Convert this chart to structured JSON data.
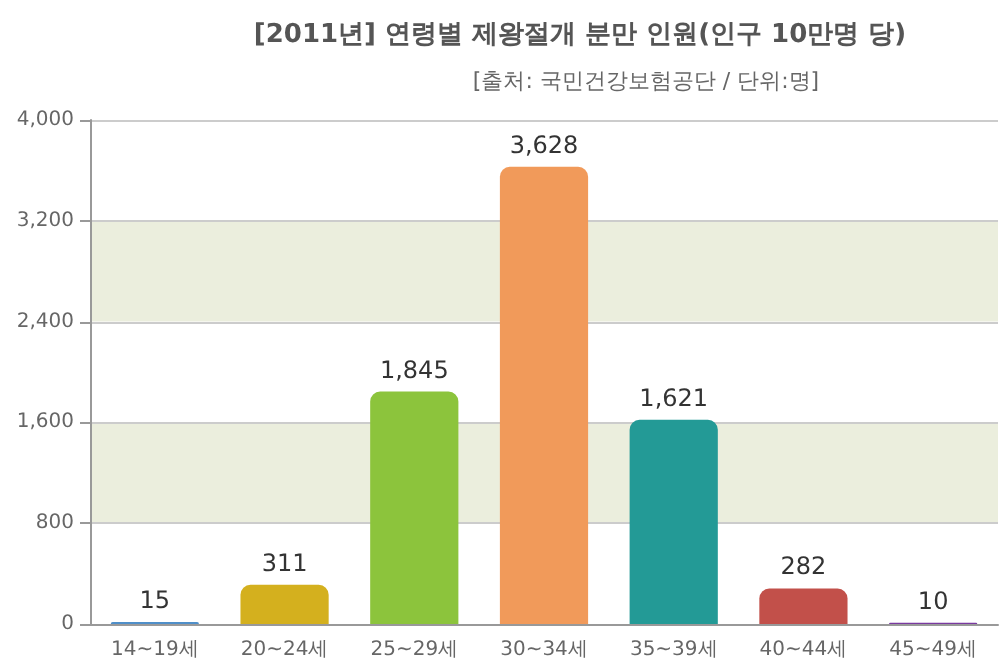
{
  "chart_data": {
    "type": "bar",
    "title": "[2011년] 연령별 제왕절개 분만 인원(인구 10만명 당)",
    "subtitle": "[출처: 국민건강보험공단 / 단위:명]",
    "categories": [
      "14~19세",
      "20~24세",
      "25~29세",
      "30~34세",
      "35~39세",
      "40~44세",
      "45~49세"
    ],
    "values": [
      15,
      311,
      1845,
      3628,
      1621,
      282,
      10
    ],
    "colors": [
      "#4f8fc9",
      "#d4b01e",
      "#8cc43c",
      "#f19a5a",
      "#239a96",
      "#c2504a",
      "#7a3aa0"
    ],
    "value_labels": [
      "15",
      "311",
      "1,845",
      "3,628",
      "1,621",
      "282",
      "10"
    ],
    "ylim": [
      0,
      4000
    ],
    "yticks": [
      0,
      800,
      {
        "value": 1600,
        "label": "1,600"
      },
      {
        "value": 2400,
        "label": "2,400"
      },
      {
        "value": 3200,
        "label": "3,200"
      },
      {
        "value": 4000,
        "label": "4,000"
      }
    ],
    "grid": "y"
  }
}
